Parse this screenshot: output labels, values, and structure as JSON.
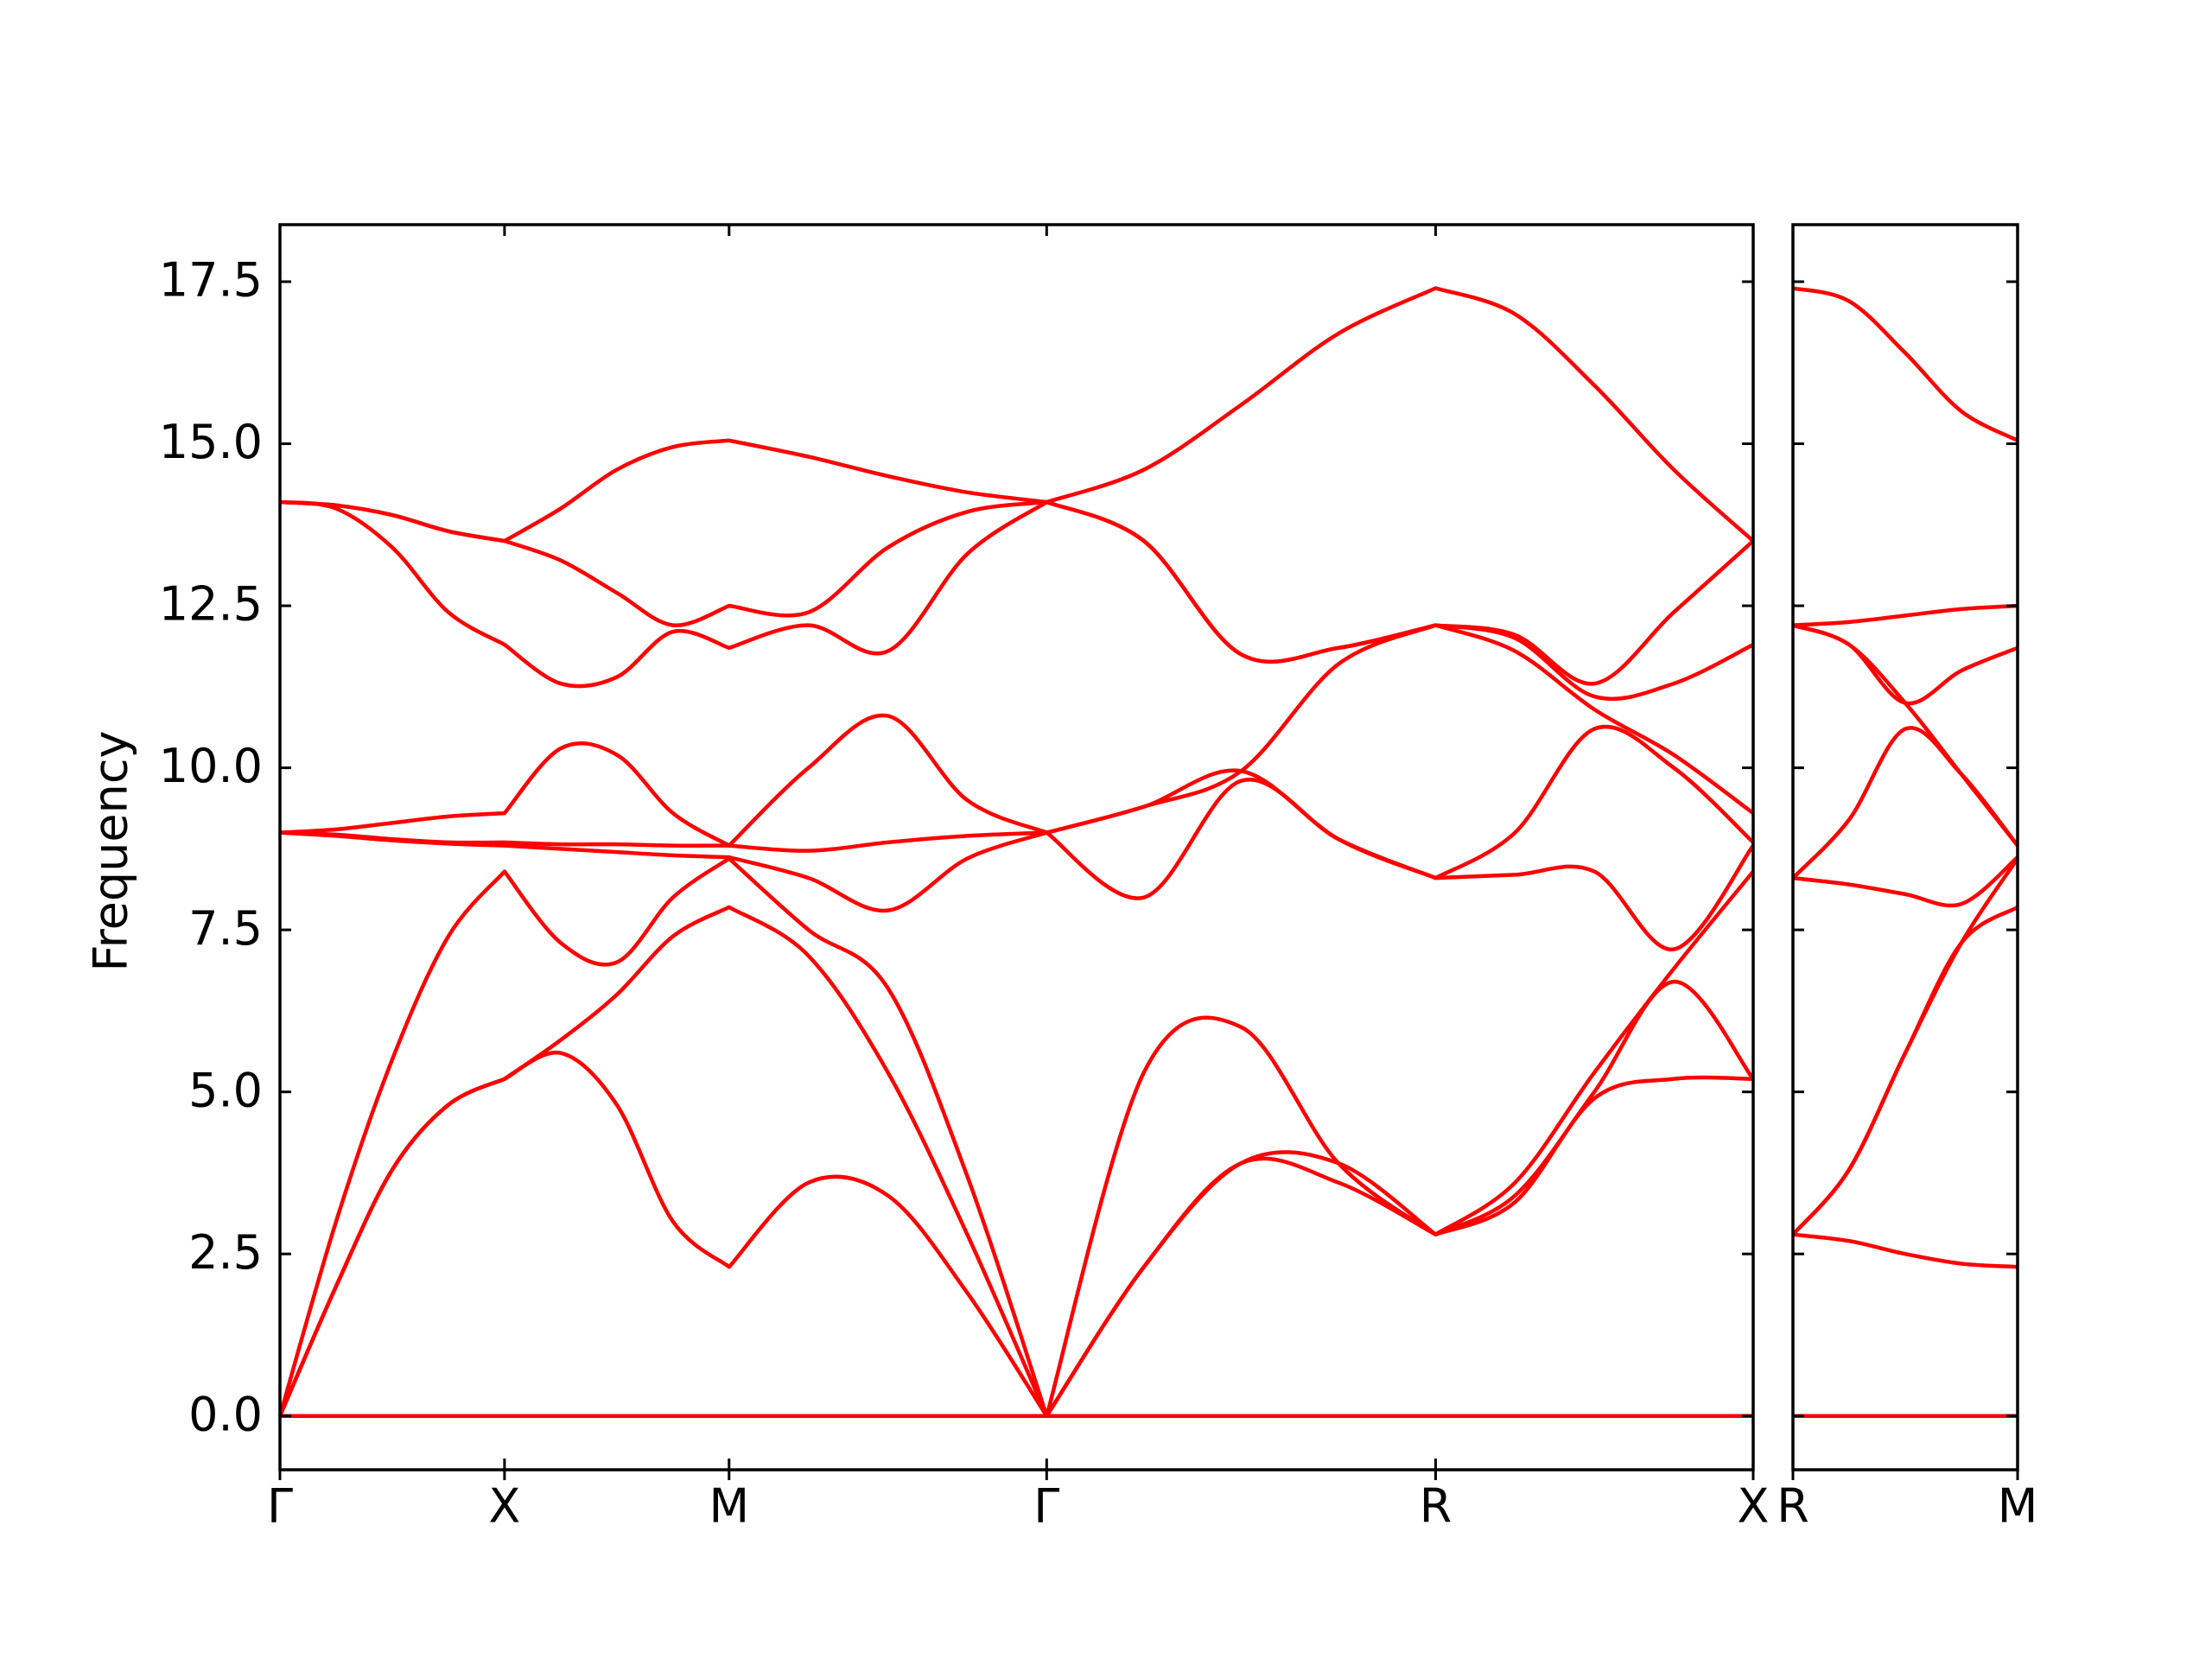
{
  "chart_data": [
    {
      "type": "line",
      "ylabel": "Frequency",
      "x": [
        0,
        0.125,
        0.25,
        0.375,
        0.5,
        0.625,
        0.75,
        0.875,
        1.0,
        1.1768,
        1.3536,
        1.5303,
        1.7071,
        1.9236,
        2.1401,
        2.3566,
        2.5731,
        2.7499,
        2.9266,
        3.1034,
        3.2802
      ],
      "xlim": [
        0,
        3.2802
      ],
      "xticks": [
        {
          "value": 0,
          "label": "Γ"
        },
        {
          "value": 0.5,
          "label": "X"
        },
        {
          "value": 1.0,
          "label": "M"
        },
        {
          "value": 1.7071,
          "label": "Γ"
        },
        {
          "value": 2.5731,
          "label": "R"
        },
        {
          "value": 3.2802,
          "label": "X"
        }
      ],
      "ylim": [
        -0.83,
        18.38
      ],
      "yticks": [
        {
          "value": 0,
          "label": "0.0"
        },
        2.5,
        {
          "value": 5,
          "label": "5.0"
        },
        7.5,
        {
          "value": 10,
          "label": "10.0"
        },
        12.5,
        {
          "value": 15,
          "label": "15.0"
        },
        17.5
      ],
      "series": [
        {
          "color": "#ff0000",
          "values": [
            0,
            0,
            0,
            0,
            0,
            0,
            0,
            0,
            0,
            0,
            0,
            0,
            0,
            0,
            0,
            0,
            0,
            0,
            0,
            0,
            0
          ]
        },
        {
          "color": "#ff0000",
          "values": [
            0,
            2.0,
            3.8,
            4.8,
            5.2,
            5.6,
            4.8,
            3.0,
            2.3,
            3.6,
            3.4,
            1.9,
            0,
            2.3,
            3.9,
            3.6,
            2.8,
            3.3,
            4.9,
            5.2,
            5.2
          ]
        },
        {
          "color": "#ff0000",
          "values": [
            0,
            2.0,
            3.8,
            4.8,
            5.2,
            5.8,
            6.5,
            7.4,
            7.85,
            7.1,
            5.3,
            2.8,
            0,
            2.3,
            3.9,
            3.9,
            2.8,
            3.4,
            5.0,
            6.7,
            5.2
          ]
        },
        {
          "color": "#ff0000",
          "values": [
            0,
            3.0,
            5.5,
            7.4,
            8.4,
            7.3,
            7.0,
            8.0,
            8.6,
            7.5,
            6.6,
            3.7,
            0,
            5.3,
            6.0,
            3.9,
            2.8,
            3.6,
            5.3,
            6.9,
            8.4
          ]
        },
        {
          "color": "#ff0000",
          "values": [
            9.0,
            8.95,
            8.88,
            8.83,
            8.8,
            8.75,
            8.7,
            8.65,
            8.62,
            8.3,
            7.8,
            8.6,
            9.0,
            8.0,
            9.8,
            8.9,
            8.3,
            8.35,
            8.4,
            7.2,
            8.8
          ]
        },
        {
          "color": "#ff0000",
          "values": [
            9.0,
            8.97,
            8.9,
            8.85,
            8.85,
            8.82,
            8.82,
            8.8,
            8.8,
            8.72,
            8.85,
            8.95,
            9.0,
            9.4,
            9.95,
            8.9,
            8.3,
            9.0,
            10.6,
            10.0,
            8.85
          ]
        },
        {
          "color": "#ff0000",
          "values": [
            9.0,
            9.05,
            9.15,
            9.25,
            9.3,
            10.3,
            10.2,
            9.3,
            8.8,
            10.0,
            10.8,
            9.5,
            9.0,
            9.4,
            9.95,
            11.6,
            12.2,
            11.8,
            10.9,
            10.2,
            9.3
          ]
        },
        {
          "color": "#ff0000",
          "values": [
            14.1,
            14.0,
            13.4,
            12.4,
            11.9,
            11.3,
            11.4,
            12.1,
            11.85,
            12.2,
            11.8,
            13.3,
            14.1,
            13.5,
            11.75,
            11.85,
            12.2,
            12.0,
            11.1,
            11.3,
            11.9
          ]
        },
        {
          "color": "#ff0000",
          "values": [
            14.1,
            14.05,
            13.9,
            13.65,
            13.5,
            13.2,
            12.7,
            12.2,
            12.5,
            12.4,
            13.4,
            13.95,
            14.1,
            13.5,
            11.75,
            11.85,
            12.2,
            12.05,
            11.3,
            12.4,
            13.5
          ]
        },
        {
          "color": "#ff0000",
          "values": [
            14.1,
            14.05,
            13.9,
            13.65,
            13.5,
            14.0,
            14.6,
            14.95,
            15.05,
            14.8,
            14.5,
            14.25,
            14.1,
            14.6,
            15.6,
            16.7,
            17.4,
            17.0,
            15.9,
            14.6,
            13.5
          ]
        }
      ]
    },
    {
      "type": "line",
      "x": [
        0,
        0.125,
        0.25,
        0.375,
        0.5
      ],
      "xlim": [
        0,
        0.5
      ],
      "xticks": [
        {
          "value": 0,
          "label": "R"
        },
        {
          "value": 0.5,
          "label": "M"
        }
      ],
      "ylim": [
        -0.83,
        18.38
      ],
      "series": [
        {
          "color": "#ff0000",
          "values": [
            0,
            0,
            0,
            0,
            0
          ]
        },
        {
          "color": "#ff0000",
          "values": [
            2.8,
            2.7,
            2.5,
            2.35,
            2.3
          ]
        },
        {
          "color": "#ff0000",
          "values": [
            2.8,
            3.8,
            5.6,
            7.3,
            7.85
          ]
        },
        {
          "color": "#ff0000",
          "values": [
            2.8,
            3.8,
            5.6,
            7.3,
            8.6
          ]
        },
        {
          "color": "#ff0000",
          "values": [
            8.3,
            8.2,
            8.05,
            7.9,
            8.62
          ]
        },
        {
          "color": "#ff0000",
          "values": [
            8.3,
            9.2,
            10.6,
            9.9,
            8.8
          ]
        },
        {
          "color": "#ff0000",
          "values": [
            12.2,
            11.9,
            11.0,
            9.9,
            8.8
          ]
        },
        {
          "color": "#ff0000",
          "values": [
            12.2,
            11.9,
            11.0,
            11.5,
            11.85
          ]
        },
        {
          "color": "#ff0000",
          "values": [
            12.2,
            12.25,
            12.35,
            12.45,
            12.5
          ]
        },
        {
          "color": "#ff0000",
          "values": [
            17.4,
            17.2,
            16.4,
            15.5,
            15.05
          ]
        }
      ]
    }
  ]
}
